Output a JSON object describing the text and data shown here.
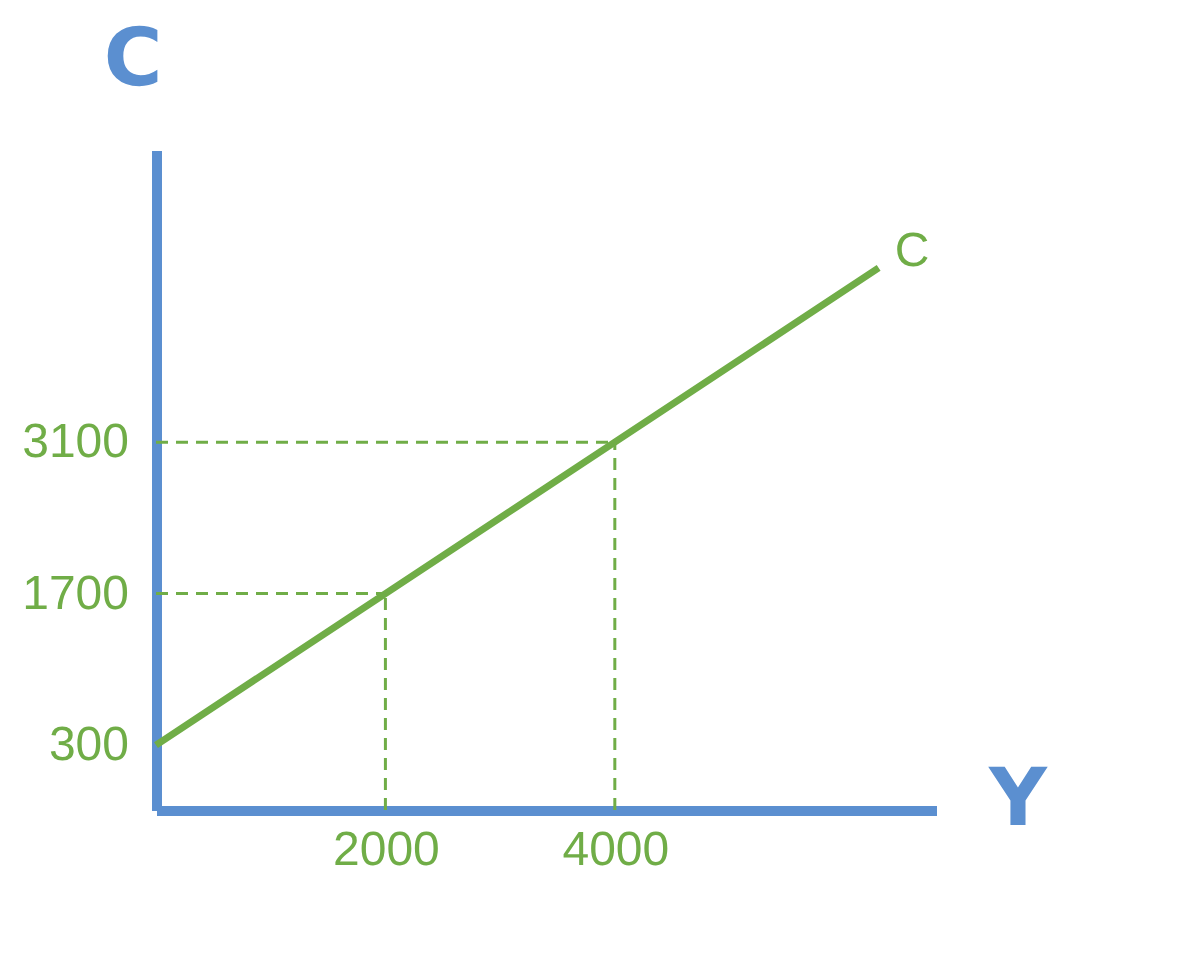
{
  "chart_data": {
    "type": "line",
    "xlabel": "Y",
    "ylabel": "C",
    "x": [
      0,
      2000,
      4000,
      6300
    ],
    "series": [
      {
        "name": "C",
        "color": "#70ad47",
        "values": [
          300,
          1700,
          3100,
          4710
        ]
      }
    ],
    "xlim": [
      0,
      6800
    ],
    "ylim": [
      -300,
      5800
    ],
    "xticks": [
      2000,
      4000
    ],
    "yticks": [
      300,
      1700,
      3100
    ],
    "ref_lines": [
      {
        "axis": "x",
        "value": 2000,
        "color": "#70ad47",
        "line_style": "dashed"
      },
      {
        "axis": "x",
        "value": 4000,
        "color": "#70ad47",
        "line_style": "dashed"
      },
      {
        "axis": "y",
        "value": 1700,
        "color": "#70ad47",
        "line_style": "dashed"
      },
      {
        "axis": "y",
        "value": 3100,
        "color": "#70ad47",
        "line_style": "dashed"
      }
    ],
    "grid": false,
    "marker": "none",
    "line_style": "solid"
  }
}
